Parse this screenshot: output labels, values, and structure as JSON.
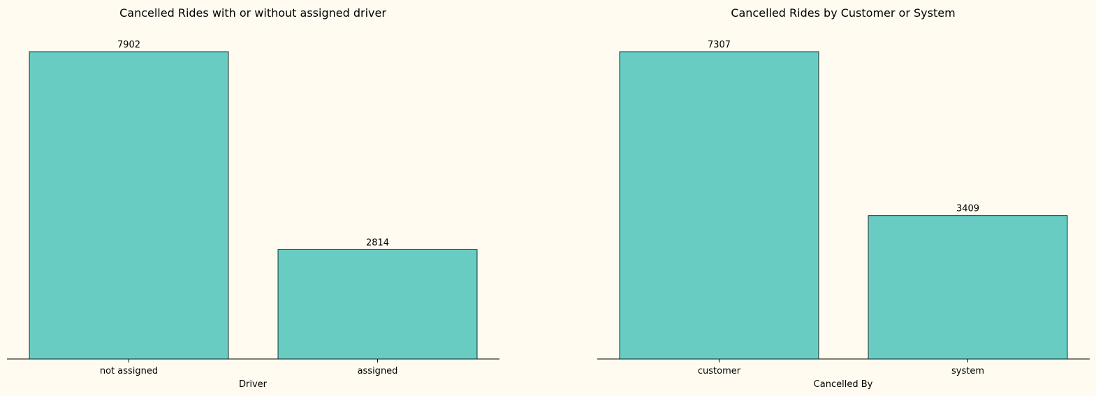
{
  "background": "#fffbf0",
  "bar_color": "#69ccc2",
  "edge_color": "#000000",
  "chart_data": [
    {
      "type": "bar",
      "title": "Cancelled Rides with or without assigned driver",
      "xlabel": "Driver",
      "ylabel": "",
      "categories": [
        "not assigned",
        "assigned"
      ],
      "values": [
        7902,
        2814
      ],
      "data_labels": [
        "7902",
        "2814"
      ],
      "ylim": [
        0,
        7902
      ],
      "grid": false,
      "y_axis_visible": false
    },
    {
      "type": "bar",
      "title": "Cancelled Rides by Customer or System",
      "xlabel": "Cancelled By",
      "ylabel": "",
      "categories": [
        "customer",
        "system"
      ],
      "values": [
        7307,
        3409
      ],
      "data_labels": [
        "7307",
        "3409"
      ],
      "ylim": [
        0,
        7307
      ],
      "grid": false,
      "y_axis_visible": false
    }
  ]
}
